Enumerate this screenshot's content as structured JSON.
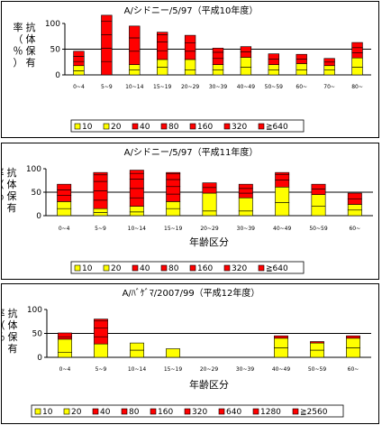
{
  "colors": {
    "level_10": "#ffff00",
    "level_20": "#ffff00",
    "red": "#ff0000",
    "outline": "#000000"
  },
  "chart_data": [
    {
      "type": "bar",
      "title": "A/シドニー/5/97（平成10年度）",
      "xlabel": "",
      "ylabel": "抗体保有率（％）",
      "ylim": [
        0,
        100
      ],
      "yticks": [
        0,
        50,
        100
      ],
      "reference_line": 50,
      "categories": [
        "0~4",
        "5~9",
        "10~14",
        "15~19",
        "20~29",
        "30~39",
        "40~49",
        "50~59",
        "60~",
        "70~",
        "80~"
      ],
      "legend": [
        "10",
        "20",
        "40",
        "80",
        "160",
        "320",
        "≧640"
      ],
      "stacks": [
        [
          8,
          10,
          8,
          10,
          10,
          0,
          0
        ],
        [
          0,
          0,
          26,
          26,
          26,
          26,
          12
        ],
        [
          10,
          10,
          26,
          26,
          23,
          0,
          0
        ],
        [
          15,
          15,
          17,
          17,
          14,
          5,
          0
        ],
        [
          10,
          20,
          16,
          16,
          15,
          0,
          0
        ],
        [
          10,
          10,
          12,
          12,
          8,
          0,
          0
        ],
        [
          15,
          19,
          11,
          10,
          0,
          0,
          0
        ],
        [
          10,
          10,
          11,
          10,
          0,
          0,
          0
        ],
        [
          10,
          12,
          9,
          9,
          0,
          0,
          0
        ],
        [
          10,
          8,
          7,
          7,
          0,
          0,
          0
        ],
        [
          15,
          18,
          10,
          10,
          10,
          0,
          0
        ]
      ]
    },
    {
      "type": "bar",
      "title": "A/シドニー/5/97（平成11年度）",
      "xlabel": "年齢区分",
      "ylabel": "抗体保有率（％）",
      "ylim": [
        0,
        100
      ],
      "yticks": [
        0,
        50,
        100
      ],
      "reference_line": 50,
      "categories": [
        "0~4",
        "5~9",
        "10~14",
        "15~19",
        "20~29",
        "30~39",
        "40~49",
        "50~59",
        "60~"
      ],
      "legend": [
        "10",
        "20",
        "40",
        "80",
        "160",
        "320",
        "≧640"
      ],
      "stacks": [
        [
          15,
          15,
          13,
          12,
          12,
          0,
          0
        ],
        [
          7,
          8,
          18,
          20,
          20,
          14,
          5
        ],
        [
          8,
          12,
          18,
          20,
          20,
          12,
          7
        ],
        [
          15,
          15,
          16,
          16,
          15,
          12,
          3
        ],
        [
          10,
          38,
          12,
          10,
          0,
          0,
          0
        ],
        [
          10,
          28,
          10,
          10,
          9,
          0,
          0
        ],
        [
          28,
          33,
          15,
          12,
          4,
          0,
          0
        ],
        [
          20,
          25,
          12,
          10,
          0,
          0,
          0
        ],
        [
          12,
          12,
          12,
          12,
          0,
          0,
          0
        ]
      ]
    },
    {
      "type": "bar",
      "title": "A/ﾊﾞｹﾞﾏ/2007/99（平成12年度）",
      "xlabel": "年齢区分",
      "ylabel": "抗体保有率（％）",
      "ylim": [
        0,
        100
      ],
      "yticks": [
        0,
        50,
        100
      ],
      "reference_line": 50,
      "categories": [
        "0~4",
        "5~9",
        "10~14",
        "15~19",
        "20~29",
        "30~39",
        "40~49",
        "50~59",
        "60~"
      ],
      "legend": [
        "10",
        "20",
        "40",
        "80",
        "160",
        "320",
        "640",
        "1280",
        "≧2560"
      ],
      "stacks": [
        [
          10,
          28,
          5,
          8,
          0,
          0,
          0,
          0,
          0
        ],
        [
          0,
          28,
          15,
          18,
          15,
          4,
          0,
          0,
          0
        ],
        [
          15,
          15,
          0,
          0,
          0,
          0,
          0,
          0,
          0
        ],
        [
          18,
          0,
          0,
          0,
          0,
          0,
          0,
          0,
          0
        ],
        [
          0,
          0,
          0,
          0,
          0,
          0,
          0,
          0,
          0
        ],
        [
          0,
          0,
          0,
          0,
          0,
          0,
          0,
          0,
          0
        ],
        [
          20,
          20,
          5,
          0,
          0,
          0,
          0,
          0,
          0
        ],
        [
          15,
          15,
          3,
          0,
          0,
          0,
          0,
          0,
          0
        ],
        [
          20,
          20,
          5,
          0,
          0,
          0,
          0,
          0,
          0
        ]
      ]
    }
  ]
}
